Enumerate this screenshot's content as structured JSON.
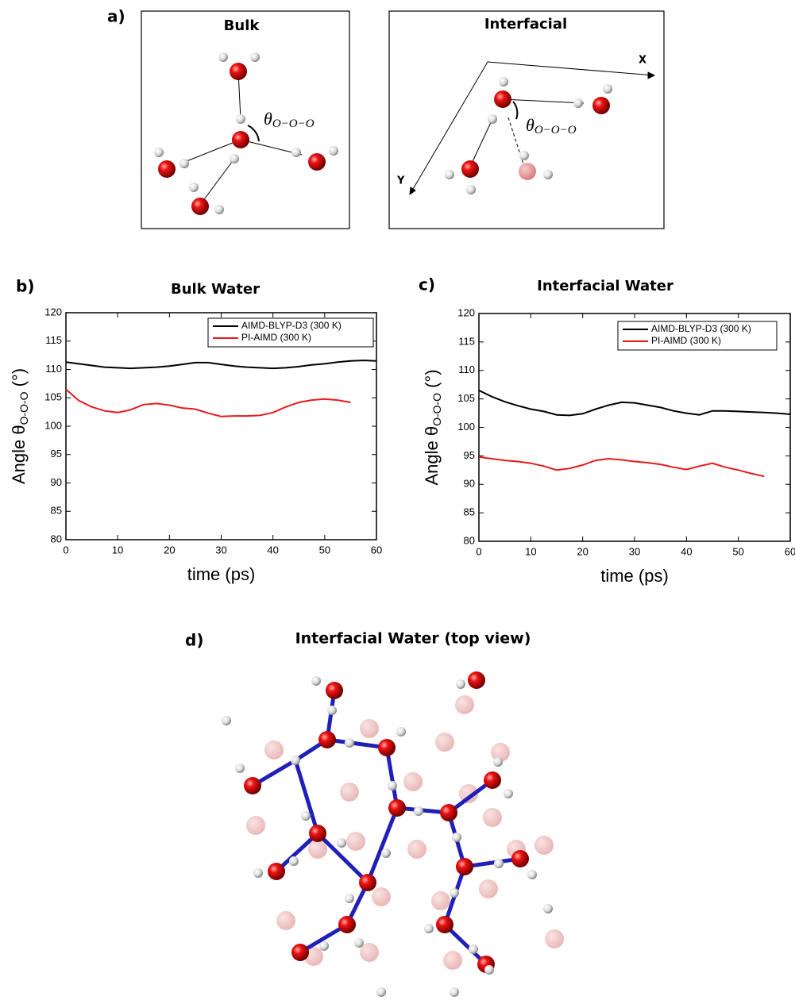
{
  "figure": {
    "panel_labels": [
      "a)",
      "b)",
      "c)",
      "d)"
    ],
    "bulk_label": "Bulk",
    "interfacial_label": "Interfacial",
    "axis_x": "X",
    "axis_y": "Y",
    "angle_symbol": "θ",
    "angle_sub": "O−O−O",
    "top_view_title": "Interfacial Water (top view)"
  },
  "chart_data": [
    {
      "type": "line",
      "title": "Bulk Water",
      "x_label": "time (ps)",
      "y_label": "Angle θ",
      "y_label_sub": "O-O-O",
      "y_label_unit": "(°)",
      "x": [
        0,
        2.5,
        5,
        7.5,
        10,
        12.5,
        15,
        17.5,
        20,
        22.5,
        25,
        27.5,
        30,
        32.5,
        35,
        37.5,
        40,
        42.5,
        45,
        47.5,
        50,
        52.5,
        55,
        57.5,
        60
      ],
      "series": [
        {
          "name": "AIMD-BLYP-D3 (300 K)",
          "color": "#000000",
          "values": [
            111.3,
            111.0,
            110.7,
            110.4,
            110.3,
            110.2,
            110.3,
            110.4,
            110.6,
            110.9,
            111.2,
            111.2,
            110.9,
            110.6,
            110.4,
            110.3,
            110.2,
            110.3,
            110.5,
            110.8,
            111.0,
            111.3,
            111.5,
            111.6,
            111.5
          ]
        },
        {
          "name": "PI-AIMD (300 K)",
          "color": "#e8191c",
          "values": [
            106.5,
            104.5,
            103.4,
            102.7,
            102.4,
            102.9,
            103.8,
            104.0,
            103.7,
            103.2,
            103.0,
            102.3,
            101.7,
            101.8,
            101.8,
            101.9,
            102.4,
            103.4,
            104.2,
            104.6,
            104.8,
            104.6,
            104.2,
            null,
            null
          ]
        }
      ],
      "xlim": [
        0,
        60
      ],
      "xticks": [
        0,
        10,
        20,
        30,
        40,
        50,
        60
      ],
      "ylim": [
        80,
        120
      ],
      "yticks": [
        80,
        85,
        90,
        95,
        100,
        105,
        110,
        115,
        120
      ],
      "legend": "top-right",
      "grid": false
    },
    {
      "type": "line",
      "title": "Interfacial Water",
      "x_label": "time (ps)",
      "y_label": "Angle θ",
      "y_label_sub": "O-O-O",
      "y_label_unit": "(°)",
      "x": [
        0,
        2.5,
        5,
        7.5,
        10,
        12.5,
        15,
        17.5,
        20,
        22.5,
        25,
        27.5,
        30,
        32.5,
        35,
        37.5,
        40,
        42.5,
        45,
        47.5,
        50,
        52.5,
        55,
        57.5,
        60
      ],
      "series": [
        {
          "name": "AIMD-BLYP-D3 (300 K)",
          "color": "#000000",
          "values": [
            106.5,
            105.4,
            104.5,
            103.8,
            103.2,
            102.8,
            102.2,
            102.1,
            102.4,
            103.2,
            103.9,
            104.4,
            104.3,
            103.9,
            103.5,
            102.9,
            102.5,
            102.2,
            102.9,
            102.9,
            102.8,
            102.7,
            102.6,
            102.5,
            102.3
          ]
        },
        {
          "name": "PI-AIMD (300 K)",
          "color": "#e8191c",
          "values": [
            94.8,
            94.5,
            94.2,
            94.0,
            93.7,
            93.2,
            92.5,
            92.8,
            93.4,
            94.2,
            94.5,
            94.3,
            94.0,
            93.8,
            93.5,
            93.0,
            92.6,
            93.2,
            93.7,
            93.0,
            92.5,
            91.9,
            91.4,
            null,
            null
          ]
        }
      ],
      "xlim": [
        0,
        60
      ],
      "xticks": [
        0,
        10,
        20,
        30,
        40,
        50,
        60
      ],
      "ylim": [
        80,
        120
      ],
      "yticks": [
        80,
        85,
        90,
        95,
        100,
        105,
        110,
        115,
        120
      ],
      "legend": "top-right",
      "grid": false
    }
  ]
}
